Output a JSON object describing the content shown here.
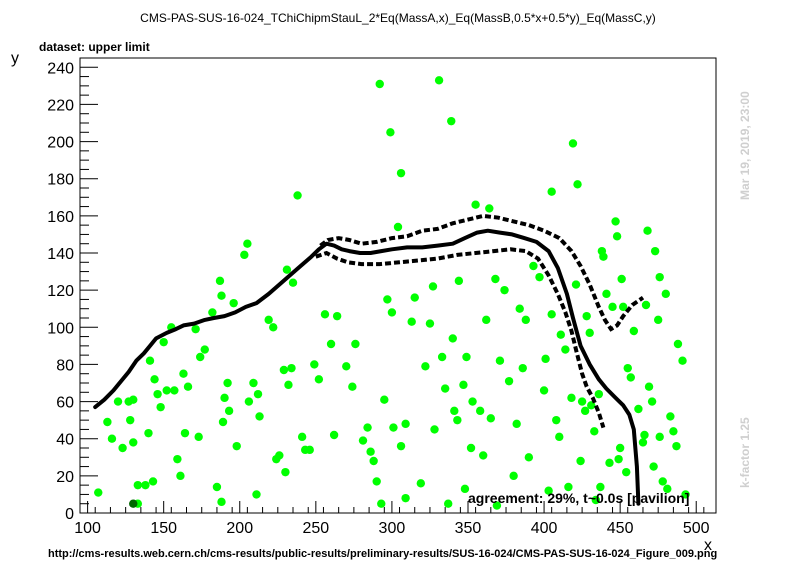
{
  "chart_data": {
    "type": "scatter",
    "title": "CMS-PAS-SUS-16-024_TChiChipmStauL_2*Eq(MassA,x)_Eq(MassB,0.5*x+0.5*y)_Eq(MassC,y)",
    "subtitle": "dataset: upper limit",
    "xlabel": "x",
    "ylabel": "y",
    "xlim": [
      95,
      513
    ],
    "ylim": [
      0,
      245
    ],
    "xticks": [
      100,
      150,
      200,
      250,
      300,
      350,
      400,
      450,
      500
    ],
    "yticks": [
      0,
      20,
      40,
      60,
      80,
      100,
      120,
      140,
      160,
      180,
      200,
      220,
      240
    ],
    "grid": false,
    "points_color": "#00ff00",
    "excluded_point_color": "#006600",
    "excluded_points": [
      [
        130,
        5
      ]
    ],
    "series": [
      {
        "points": [
          [
            107,
            11
          ],
          [
            113,
            49
          ],
          [
            116,
            40
          ],
          [
            120,
            60
          ],
          [
            123,
            35
          ],
          [
            127,
            60
          ],
          [
            128,
            50
          ],
          [
            130,
            61
          ],
          [
            130,
            38
          ],
          [
            133,
            15
          ],
          [
            133,
            5
          ],
          [
            138,
            15
          ],
          [
            140,
            43
          ],
          [
            141,
            82
          ],
          [
            143,
            17
          ],
          [
            144,
            72
          ],
          [
            146,
            64
          ],
          [
            148,
            57
          ],
          [
            150,
            92
          ],
          [
            152,
            66
          ],
          [
            155,
            100
          ],
          [
            157,
            66
          ],
          [
            159,
            29
          ],
          [
            161,
            20
          ],
          [
            163,
            75
          ],
          [
            164,
            43
          ],
          [
            166,
            68
          ],
          [
            171,
            99
          ],
          [
            173,
            41
          ],
          [
            174,
            84
          ],
          [
            177,
            88
          ],
          [
            182,
            108
          ],
          [
            185,
            14
          ],
          [
            187,
            125
          ],
          [
            188,
            6
          ],
          [
            188,
            117
          ],
          [
            189,
            49
          ],
          [
            190,
            62
          ],
          [
            192,
            70
          ],
          [
            193,
            55
          ],
          [
            196,
            113
          ],
          [
            198,
            36
          ],
          [
            203,
            139
          ],
          [
            205,
            145
          ],
          [
            206,
            60
          ],
          [
            209,
            70
          ],
          [
            211,
            10
          ],
          [
            212,
            64
          ],
          [
            213,
            52
          ],
          [
            219,
            104
          ],
          [
            222,
            100
          ],
          [
            224,
            29
          ],
          [
            226,
            31
          ],
          [
            229,
            77
          ],
          [
            230,
            22
          ],
          [
            231,
            131
          ],
          [
            232,
            69
          ],
          [
            234,
            78
          ],
          [
            235,
            124
          ],
          [
            238,
            171
          ],
          [
            241,
            41
          ],
          [
            243,
            34
          ],
          [
            246,
            34
          ],
          [
            249,
            80
          ],
          [
            252,
            72
          ],
          [
            256,
            107
          ],
          [
            260,
            91
          ],
          [
            262,
            42
          ],
          [
            264,
            106
          ],
          [
            270,
            79
          ],
          [
            274,
            68
          ],
          [
            276,
            91
          ],
          [
            281,
            39
          ],
          [
            284,
            46
          ],
          [
            286,
            33
          ],
          [
            288,
            28
          ],
          [
            290,
            17
          ],
          [
            292,
            231
          ],
          [
            293,
            5
          ],
          [
            295,
            61
          ],
          [
            297,
            115
          ],
          [
            299,
            205
          ],
          [
            300,
            108
          ],
          [
            301,
            46
          ],
          [
            304,
            154
          ],
          [
            306,
            183
          ],
          [
            306,
            36
          ],
          [
            309,
            48
          ],
          [
            309,
            8
          ],
          [
            313,
            103
          ],
          [
            315,
            116
          ],
          [
            319,
            16
          ],
          [
            322,
            79
          ],
          [
            325,
            102
          ],
          [
            327,
            122
          ],
          [
            328,
            45
          ],
          [
            331,
            233
          ],
          [
            333,
            84
          ],
          [
            335,
            67
          ],
          [
            337,
            5
          ],
          [
            339,
            211
          ],
          [
            340,
            94
          ],
          [
            341,
            55
          ],
          [
            343,
            50
          ],
          [
            344,
            125
          ],
          [
            347,
            69
          ],
          [
            348,
            13
          ],
          [
            349,
            84
          ],
          [
            352,
            35
          ],
          [
            353,
            60
          ],
          [
            355,
            166
          ],
          [
            358,
            55
          ],
          [
            360,
            31
          ],
          [
            362,
            104
          ],
          [
            364,
            164
          ],
          [
            365,
            51
          ],
          [
            368,
            126
          ],
          [
            369,
            4
          ],
          [
            371,
            82
          ],
          [
            374,
            120
          ],
          [
            377,
            71
          ],
          [
            380,
            20
          ],
          [
            382,
            48
          ],
          [
            384,
            110
          ],
          [
            386,
            78
          ],
          [
            388,
            104
          ],
          [
            390,
            30
          ],
          [
            393,
            133
          ],
          [
            397,
            127
          ],
          [
            400,
            66
          ],
          [
            401,
            83
          ],
          [
            403,
            12
          ],
          [
            405,
            173
          ],
          [
            405,
            107
          ],
          [
            408,
            50
          ],
          [
            410,
            41
          ],
          [
            411,
            96
          ],
          [
            414,
            88
          ],
          [
            416,
            14
          ],
          [
            418,
            62
          ],
          [
            419,
            199
          ],
          [
            421,
            123
          ],
          [
            422,
            177
          ],
          [
            424,
            28
          ],
          [
            425,
            60
          ],
          [
            427,
            55
          ],
          [
            428,
            106
          ],
          [
            430,
            97
          ],
          [
            431,
            58
          ],
          [
            433,
            44
          ],
          [
            434,
            7
          ],
          [
            436,
            64
          ],
          [
            437,
            14
          ],
          [
            438,
            141
          ],
          [
            439,
            138
          ],
          [
            441,
            118
          ],
          [
            443,
            27
          ],
          [
            445,
            111
          ],
          [
            447,
            157
          ],
          [
            448,
            149
          ],
          [
            449,
            29
          ],
          [
            450,
            35
          ],
          [
            451,
            126
          ],
          [
            452,
            111
          ],
          [
            454,
            22
          ],
          [
            455,
            78
          ],
          [
            457,
            73
          ],
          [
            459,
            98
          ],
          [
            462,
            56
          ],
          [
            465,
            38
          ],
          [
            466,
            42
          ],
          [
            467,
            112
          ],
          [
            468,
            152
          ],
          [
            469,
            68
          ],
          [
            471,
            60
          ],
          [
            472,
            25
          ],
          [
            473,
            141
          ],
          [
            475,
            104
          ],
          [
            476,
            41
          ],
          [
            476,
            127
          ],
          [
            478,
            17
          ],
          [
            480,
            118
          ],
          [
            481,
            13
          ],
          [
            483,
            52
          ],
          [
            485,
            44
          ],
          [
            487,
            36
          ],
          [
            488,
            91
          ],
          [
            491,
            82
          ],
          [
            493,
            10
          ]
        ]
      }
    ],
    "contour_expected": [
      [
        105,
        57
      ],
      [
        111,
        61
      ],
      [
        117,
        66
      ],
      [
        122,
        71
      ],
      [
        127,
        76
      ],
      [
        132,
        82
      ],
      [
        137,
        86
      ],
      [
        141,
        90
      ],
      [
        145,
        94
      ],
      [
        152,
        97
      ],
      [
        158,
        99
      ],
      [
        163,
        101
      ],
      [
        170,
        102
      ],
      [
        177,
        104
      ],
      [
        183,
        105
      ],
      [
        190,
        106
      ],
      [
        197,
        108
      ],
      [
        204,
        111
      ],
      [
        211,
        113
      ],
      [
        219,
        118
      ],
      [
        226,
        123
      ],
      [
        233,
        128
      ],
      [
        240,
        133
      ],
      [
        247,
        138
      ],
      [
        252,
        142
      ],
      [
        257,
        145
      ],
      [
        262,
        144
      ],
      [
        267,
        142
      ],
      [
        272,
        141
      ],
      [
        279,
        140
      ],
      [
        286,
        140
      ],
      [
        293,
        141
      ],
      [
        300,
        142
      ],
      [
        310,
        143
      ],
      [
        320,
        143
      ],
      [
        330,
        144
      ],
      [
        340,
        145
      ],
      [
        348,
        148
      ],
      [
        356,
        151
      ],
      [
        363,
        152
      ],
      [
        371,
        151
      ],
      [
        379,
        150
      ],
      [
        387,
        148
      ],
      [
        395,
        146
      ],
      [
        403,
        141
      ],
      [
        409,
        132
      ],
      [
        415,
        118
      ],
      [
        419,
        105
      ],
      [
        424,
        90
      ],
      [
        430,
        80
      ],
      [
        436,
        72
      ],
      [
        441,
        67
      ],
      [
        447,
        62
      ],
      [
        452,
        58
      ],
      [
        456,
        53
      ],
      [
        459,
        45
      ],
      [
        461,
        25
      ],
      [
        462,
        5
      ]
    ],
    "contour_plus": [
      [
        253,
        144
      ],
      [
        258,
        147
      ],
      [
        265,
        148
      ],
      [
        272,
        147
      ],
      [
        280,
        145
      ],
      [
        290,
        146
      ],
      [
        300,
        148
      ],
      [
        310,
        149
      ],
      [
        320,
        152
      ],
      [
        330,
        153
      ],
      [
        340,
        156
      ],
      [
        350,
        158
      ],
      [
        360,
        160
      ],
      [
        370,
        159
      ],
      [
        380,
        157
      ],
      [
        390,
        155
      ],
      [
        400,
        152
      ],
      [
        410,
        148
      ],
      [
        418,
        141
      ],
      [
        424,
        133
      ],
      [
        430,
        123
      ],
      [
        436,
        111
      ],
      [
        440,
        104
      ],
      [
        444,
        99
      ],
      [
        448,
        101
      ],
      [
        452,
        106
      ],
      [
        458,
        112
      ],
      [
        465,
        116
      ]
    ],
    "contour_minus": [
      [
        250,
        138
      ],
      [
        257,
        140
      ],
      [
        264,
        137
      ],
      [
        271,
        135
      ],
      [
        280,
        134
      ],
      [
        292,
        134
      ],
      [
        305,
        135
      ],
      [
        318,
        136
      ],
      [
        330,
        137
      ],
      [
        343,
        139
      ],
      [
        355,
        140
      ],
      [
        367,
        141
      ],
      [
        378,
        142
      ],
      [
        388,
        141
      ],
      [
        396,
        137
      ],
      [
        403,
        128
      ],
      [
        409,
        118
      ],
      [
        414,
        108
      ],
      [
        418,
        98
      ],
      [
        421,
        88
      ],
      [
        425,
        75
      ],
      [
        428,
        68
      ],
      [
        432,
        62
      ],
      [
        436,
        54
      ],
      [
        439,
        46
      ]
    ],
    "annotations": {
      "agreement": "agreement: 29%, t~0.0s [pavilion]",
      "timestamp": "Mar 19, 2019, 23:00",
      "kfactor": "k-factor 1.25",
      "footer_url": "http://cms-results.web.cern.ch/cms-results/public-results/preliminary-results/SUS-16-024/CMS-PAS-SUS-16-024_Figure_009.png"
    }
  }
}
